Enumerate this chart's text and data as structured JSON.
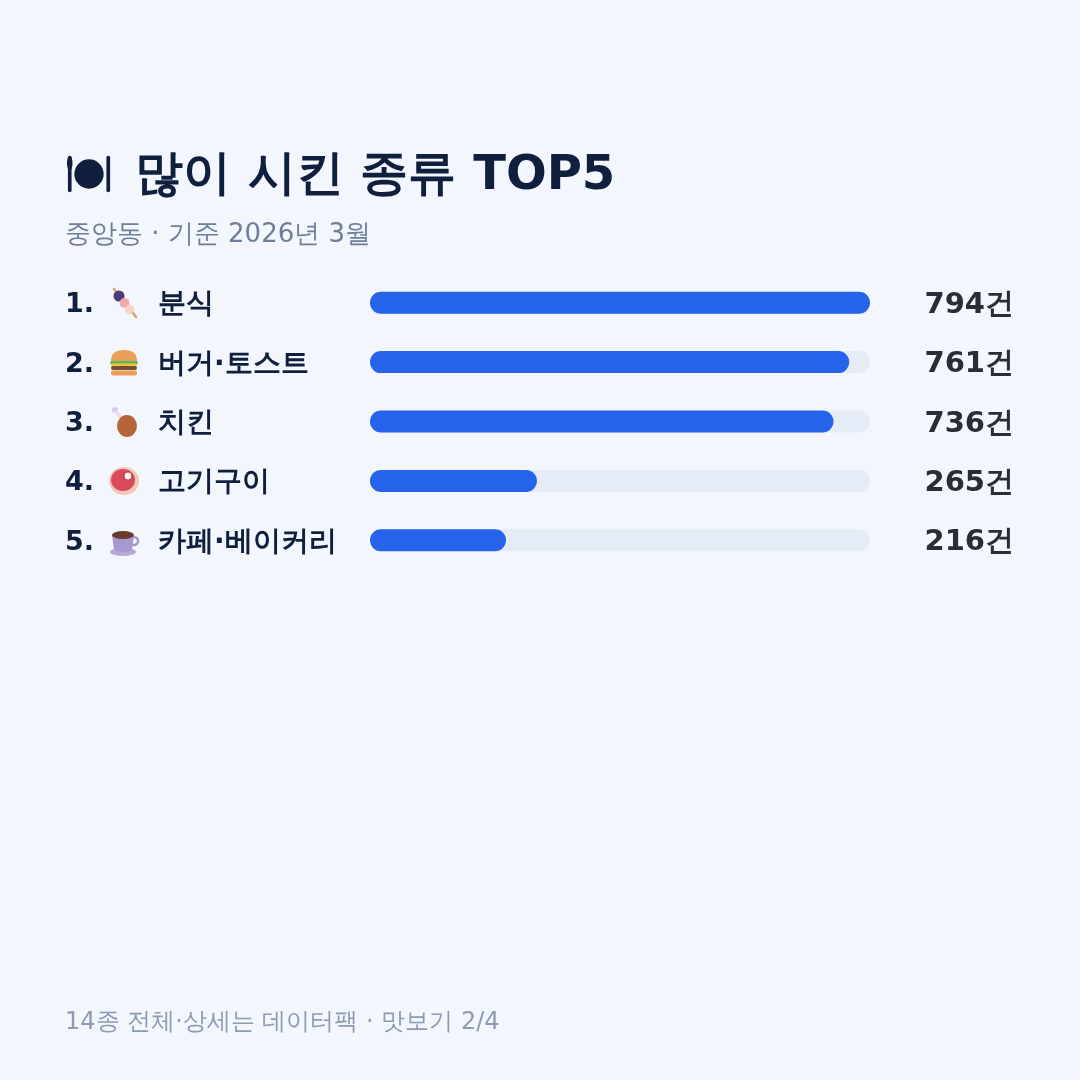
{
  "chart_data": {
    "type": "bar",
    "orientation": "horizontal",
    "title": "많이 시킨 종류 TOP5",
    "subtitle": "중앙동 · 기준 2026년 3월",
    "categories": [
      "분식",
      "버거·토스트",
      "치킨",
      "고기구이",
      "카페·베이커리"
    ],
    "values": [
      794,
      761,
      736,
      265,
      216
    ],
    "color": "#2563eb",
    "value_labels": [
      "794건",
      "761건",
      "736건",
      "265건",
      "216건"
    ],
    "xlim": [
      0,
      794
    ],
    "tick_labels": "y",
    "annotations": [
      "1.",
      "2.",
      "3.",
      "4.",
      "5.",
      "14종 전체·상세는 데이터팩 · 맛보기 2/4"
    ]
  }
}
